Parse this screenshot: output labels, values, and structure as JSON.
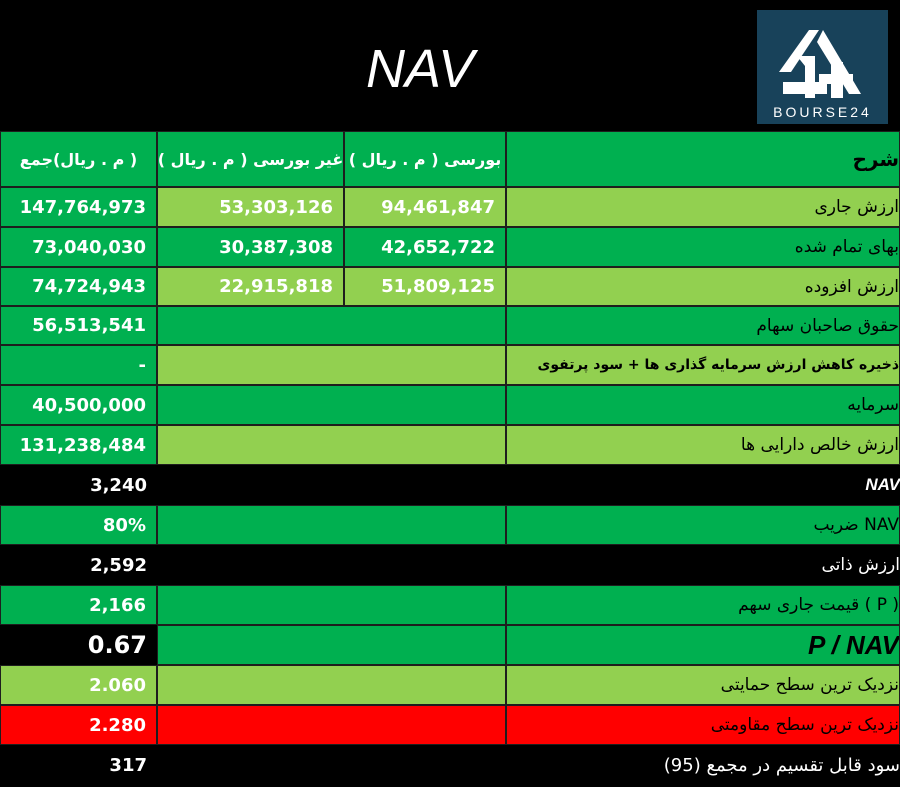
{
  "title": "NAV",
  "logo": {
    "text": "BOURSE24",
    "icon": "bourse24-logo-icon"
  },
  "header": {
    "desc": "شرح",
    "bourse": "بورسی ( م . ریال )",
    "non_bourse": "غیر بورسی ( م . ریال )",
    "total": "( م . ریال)جمع"
  },
  "rows": [
    {
      "desc": "ارزش جاری",
      "bourse": "94,461,847",
      "non_bourse": "53,303,126",
      "total": "147,764,973"
    },
    {
      "desc": "بهای تمام شده",
      "bourse": "42,652,722",
      "non_bourse": "30,387,308",
      "total": "73,040,030"
    },
    {
      "desc": "ارزش افزوده",
      "bourse": "51,809,125",
      "non_bourse": "22,915,818",
      "total": "74,724,943"
    },
    {
      "desc": "حقوق صاحبان سهام",
      "total": "56,513,541"
    },
    {
      "desc": "ذخیره کاهش ارزش سرمایه گذاری ها + سود پرتفوی",
      "total": "-"
    },
    {
      "desc": "سرمایه",
      "total": "40,500,000"
    },
    {
      "desc": "ارزش خالص دارایی ها",
      "total": "131,238,484"
    },
    {
      "desc": "NAV",
      "total": "3,240"
    },
    {
      "desc": "NAV ضریب",
      "total": "80%"
    },
    {
      "desc": "ارزش ذاتی",
      "total": "2,592"
    },
    {
      "desc": "( P ) قیمت جاری سهم",
      "total": "2,166"
    },
    {
      "desc": "P / NAV",
      "total": "0.67"
    },
    {
      "desc": "نزدیک ترین سطح حمایتی",
      "total": "2.060"
    },
    {
      "desc": "نزدیک ترین سطح مقاومتی",
      "total": "2.280"
    },
    {
      "desc": "سود قابل تقسیم در مجمع (95)",
      "total": "317"
    }
  ],
  "colors": {
    "green": "#00b050",
    "light_green": "#92d050",
    "red": "#ff0000",
    "black": "#000000",
    "logo_bg": "#18425a"
  }
}
